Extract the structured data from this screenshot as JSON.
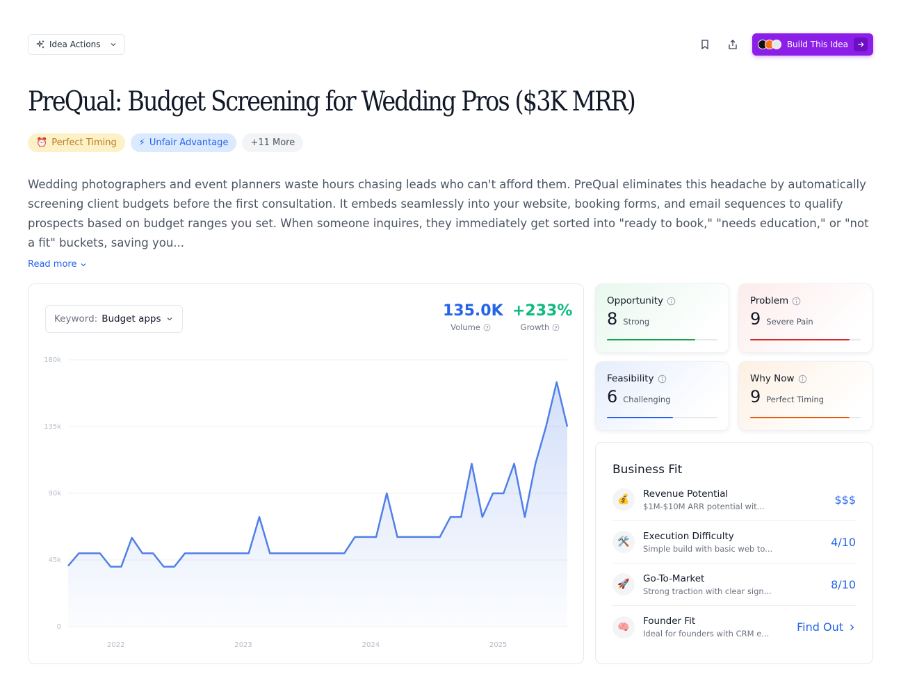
{
  "toolbar": {
    "idea_actions_label": "Idea Actions",
    "build_label": "Build This Idea"
  },
  "header": {
    "title": "PreQual: Budget Screening for Wedding Pros ($3K MRR)"
  },
  "tags": [
    {
      "icon": "⏰",
      "label": "Perfect Timing"
    },
    {
      "icon": "⚡",
      "label": "Unfair Advantage"
    },
    {
      "label": "+11 More"
    }
  ],
  "description": "Wedding photographers and event planners waste hours chasing leads who can't afford them. PreQual eliminates this headache by automatically screening client budgets before the first consultation. It embeds seamlessly into your website, booking forms, and email sequences to qualify prospects based on budget ranges you set. When someone inquires, they immediately get sorted into \"ready to book,\" \"needs education,\" or \"not a fit\" buckets, saving you...",
  "read_more_label": "Read more",
  "keyword": {
    "label": "Keyword:",
    "value": "Budget apps"
  },
  "stats": {
    "volume": "135.0K",
    "volume_label": "Volume",
    "growth": "+233%",
    "growth_label": "Growth"
  },
  "chart_data": {
    "type": "area",
    "y_ticks": [
      "0",
      "45k",
      "90k",
      "135k",
      "180k"
    ],
    "ylim": [
      0,
      180000
    ],
    "x_ticks": [
      "2022",
      "2023",
      "2024",
      "2025"
    ],
    "x_tick_positions": [
      4.5,
      16.5,
      28.5,
      40.5
    ],
    "values": [
      41000,
      49500,
      49500,
      49500,
      40500,
      40500,
      60000,
      49500,
      49500,
      40500,
      40500,
      49500,
      49500,
      49500,
      49500,
      49500,
      49500,
      49500,
      74000,
      49500,
      49500,
      49500,
      49500,
      49500,
      49500,
      49500,
      49500,
      60500,
      60500,
      60500,
      90000,
      60500,
      60500,
      60500,
      60500,
      60500,
      74000,
      74000,
      110000,
      74000,
      90000,
      90000,
      110000,
      74000,
      110000,
      135000,
      165000,
      135000
    ],
    "color": "#4f7fe8"
  },
  "scores": [
    {
      "name": "Opportunity",
      "value": "8",
      "label": "Strong",
      "fraction": 0.8,
      "color": "#16a34a"
    },
    {
      "name": "Problem",
      "value": "9",
      "label": "Severe Pain",
      "fraction": 0.9,
      "color": "#dc2626"
    },
    {
      "name": "Feasibility",
      "value": "6",
      "label": "Challenging",
      "fraction": 0.6,
      "color": "#2563eb"
    },
    {
      "name": "Why Now",
      "value": "9",
      "label": "Perfect Timing",
      "fraction": 0.9,
      "color": "#ea580c"
    }
  ],
  "business_fit": {
    "title": "Business Fit",
    "rows": [
      {
        "icon": "💰",
        "title": "Revenue Potential",
        "desc": "$1M-$10M ARR potential wit...",
        "value": "$$$"
      },
      {
        "icon": "🛠️",
        "title": "Execution Difficulty",
        "desc": "Simple build with basic web to...",
        "value": "4/10"
      },
      {
        "icon": "🚀",
        "title": "Go-To-Market",
        "desc": "Strong traction with clear sign...",
        "value": "8/10"
      },
      {
        "icon": "🧠",
        "title": "Founder Fit",
        "desc": "Ideal for founders with CRM e...",
        "value": "Find Out"
      }
    ]
  }
}
